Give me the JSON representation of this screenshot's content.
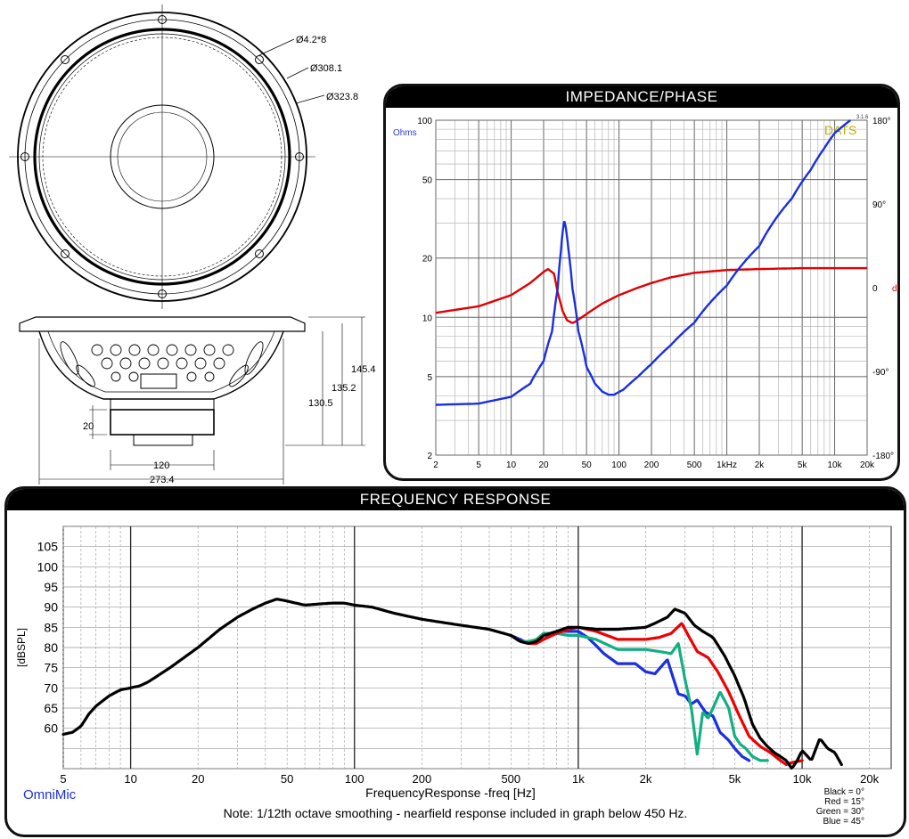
{
  "drawing": {
    "dims_front": [
      "Ø4.2*8",
      "Ø308.1",
      "Ø323.8"
    ],
    "dims_side": {
      "height_total": "145.4",
      "height_mid": "135.2",
      "height_frame": "130.5",
      "magnet_h": "20",
      "magnet_w": "120",
      "frame_w": "273.4"
    }
  },
  "impedance_panel": {
    "title": "IMPEDANCE/PHASE",
    "ohms_label": "Ohms",
    "deg_label": "deg",
    "brand": "DATS",
    "version": "3.1.6",
    "colors": {
      "impedance": "#1a2fe0",
      "phase": "#e00000",
      "ohms_label": "#2a3adc",
      "deg_label": "#e00000",
      "brand": "#b8b000"
    }
  },
  "freq_panel": {
    "title": "FREQUENCY RESPONSE",
    "xlabel": "FrequencyResponse -freq [Hz]",
    "ylabel": "[dBSPL]",
    "brand": "OmniMic",
    "note": "Note: 1/12th octave smoothing - nearfield response included in graph below 450 Hz.",
    "legend": [
      "Black = 0°",
      "Red = 15°",
      "Green = 30°",
      "Blue = 45°"
    ],
    "colors": {
      "black": "#000000",
      "red": "#ee0000",
      "green": "#10b080",
      "blue": "#1a2fe0",
      "brand": "#1a2fe0"
    }
  },
  "chart_data": [
    {
      "type": "line",
      "title": "IMPEDANCE/PHASE",
      "x_scale": "log",
      "xlim": [
        2,
        20000
      ],
      "x_ticks": [
        2,
        5,
        10,
        20,
        50,
        100,
        200,
        500,
        1000,
        2000,
        5000,
        10000,
        20000
      ],
      "x_tick_labels": [
        "2",
        "5",
        "10",
        "20",
        "50",
        "100",
        "200",
        "500",
        "1kHz",
        "2k",
        "5k",
        "10k",
        "20k"
      ],
      "y_scale": "log",
      "ylim": [
        2,
        100
      ],
      "y_ticks": [
        2,
        5,
        10,
        20,
        50,
        100
      ],
      "y2lim": [
        -180,
        180
      ],
      "y2_ticks": [
        180,
        90,
        0,
        -90,
        -180
      ],
      "y2_tick_labels": [
        "180°",
        "90°",
        "0",
        "-90°",
        "-180°"
      ],
      "series": [
        {
          "axis": "ohms",
          "x": [
            2,
            5,
            10,
            15,
            20,
            24,
            27,
            29,
            30,
            31,
            32,
            34,
            37,
            42,
            50,
            60,
            70,
            80,
            90,
            110,
            150,
            200,
            300,
            500,
            1000,
            2000,
            4000,
            6000,
            8000,
            10000,
            14000
          ],
          "y": [
            3.6,
            3.65,
            3.95,
            4.6,
            6.0,
            8.5,
            14,
            22,
            27,
            31,
            29,
            22,
            14,
            8.5,
            5.6,
            4.6,
            4.2,
            4.05,
            4.05,
            4.3,
            5.0,
            5.8,
            7.2,
            9.4,
            14.5,
            23,
            40,
            56,
            72,
            86,
            100
          ]
        },
        {
          "axis": "deg",
          "x": [
            2,
            5,
            10,
            15,
            20,
            22,
            25,
            27,
            30,
            33,
            37,
            40,
            45,
            55,
            70,
            100,
            150,
            200,
            300,
            500,
            1000,
            2000,
            5000,
            10000,
            20000
          ],
          "y": [
            -27,
            -20,
            -8,
            5,
            17,
            20,
            15,
            -5,
            -25,
            -35,
            -38,
            -36,
            -32,
            -25,
            -17,
            -8,
            0,
            5,
            11,
            16,
            19,
            20,
            21,
            21,
            21
          ]
        }
      ]
    },
    {
      "type": "line",
      "title": "FREQUENCY RESPONSE",
      "xlabel": "FrequencyResponse -freq [Hz]",
      "ylabel": "[dBSPL]",
      "x_scale": "log",
      "xlim": [
        5,
        25000
      ],
      "x_ticks": [
        5,
        10,
        20,
        50,
        100,
        200,
        500,
        1000,
        2000,
        5000,
        10000,
        20000
      ],
      "x_tick_labels": [
        "5",
        "10",
        "20",
        "50",
        "100",
        "200",
        "500",
        "1k",
        "2k",
        "5k",
        "10k",
        "20k"
      ],
      "ylim": [
        50,
        110
      ],
      "y_ticks": [
        60,
        65,
        70,
        75,
        80,
        85,
        90,
        95,
        100,
        105
      ],
      "series": [
        {
          "name": "Black = 0°",
          "x": [
            5,
            5.5,
            6,
            6.5,
            7,
            8,
            9,
            10,
            11,
            12,
            15,
            20,
            25,
            30,
            35,
            40,
            45,
            50,
            60,
            70,
            80,
            90,
            100,
            120,
            150,
            200,
            300,
            400,
            500,
            550,
            600,
            650,
            700,
            800,
            900,
            1000,
            1200,
            1500,
            2000,
            2200,
            2500,
            2700,
            3000,
            3300,
            3600,
            4000,
            4500,
            5000,
            5500,
            6000,
            6500,
            7000,
            7500,
            8000,
            8500,
            9000,
            9500,
            10000,
            11000,
            12000,
            13000,
            14000,
            15000
          ],
          "y": [
            58.5,
            59,
            60.5,
            63.5,
            65.5,
            68,
            69.5,
            70,
            70.5,
            71.5,
            75,
            80,
            84.5,
            87.5,
            89.5,
            91,
            92,
            91.5,
            90.5,
            90.8,
            91,
            91,
            90.5,
            90,
            88.5,
            87,
            85.5,
            84.5,
            83,
            81.5,
            81,
            81.5,
            83,
            84,
            85,
            85,
            84.5,
            84.5,
            85,
            86,
            87.5,
            89.5,
            88.5,
            85.5,
            84,
            82.5,
            78,
            73,
            67.5,
            61,
            57.5,
            55.5,
            54,
            53,
            52,
            50,
            52,
            54.5,
            52,
            57.5,
            55,
            54,
            51
          ]
        },
        {
          "name": "Red = 15°",
          "x": [
            500,
            550,
            600,
            650,
            700,
            800,
            900,
            1000,
            1200,
            1500,
            2000,
            2300,
            2600,
            2900,
            3100,
            3400,
            3800,
            4200,
            4700,
            5200,
            5800,
            6500,
            7200,
            8000,
            8500,
            9000,
            10000
          ],
          "y": [
            83,
            81.5,
            81,
            81,
            82,
            83.5,
            84.5,
            85,
            84,
            82,
            82,
            82.5,
            83.5,
            86,
            83,
            79,
            77.5,
            74,
            69,
            63.5,
            58,
            55.5,
            54,
            52,
            51,
            51.5,
            52
          ]
        },
        {
          "name": "Green = 30°",
          "x": [
            500,
            550,
            600,
            650,
            700,
            800,
            900,
            1000,
            1200,
            1500,
            2000,
            2300,
            2600,
            2800,
            3000,
            3200,
            3400,
            3600,
            3800,
            4000,
            4300,
            4700,
            5000,
            5300,
            5600,
            6000,
            6500,
            7000
          ],
          "y": [
            83,
            81.5,
            81.5,
            82,
            83.5,
            83.5,
            83,
            83,
            82,
            79.5,
            79.5,
            79,
            78.5,
            81,
            72,
            65,
            53.5,
            64,
            62.5,
            65,
            69,
            65,
            58,
            56,
            55,
            53,
            52,
            52
          ]
        },
        {
          "name": "Blue = 45°",
          "x": [
            500,
            550,
            600,
            650,
            700,
            800,
            900,
            1000,
            1100,
            1200,
            1300,
            1500,
            1800,
            2000,
            2200,
            2500,
            2800,
            3000,
            3200,
            3400,
            3700,
            4000,
            4300,
            4700,
            5000,
            5400,
            5800
          ],
          "y": [
            83,
            82,
            81,
            82,
            82,
            84,
            84,
            84,
            82.5,
            80.5,
            78.5,
            76,
            76,
            74,
            73.5,
            77,
            68.5,
            68,
            66,
            67,
            64,
            63,
            59,
            57,
            55,
            53,
            52
          ]
        }
      ]
    }
  ]
}
